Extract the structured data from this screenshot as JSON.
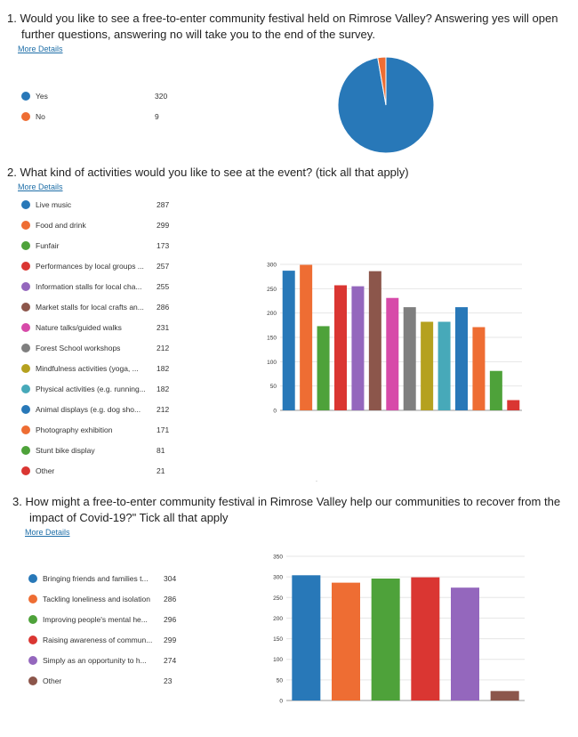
{
  "q1": {
    "title_line1": "1.  Would you like to see a free-to-enter community festival held on Rimrose Valley? Answering yes will open",
    "title_line2": "further questions, answering no will take you to the end of the survey.",
    "more_details": "More Details"
  },
  "q2": {
    "title": "2.  What kind of activities would you like to see at the event? (tick all that apply)",
    "more_details": "More Details"
  },
  "q3": {
    "title_line1": "3.  How might a free-to-enter community festival in Rimrose Valley help our communities to recover from the",
    "title_line2": "impact of Covid-19?\" Tick all that apply",
    "more_details": "More Details"
  },
  "chart_data": [
    {
      "type": "pie",
      "categories": [
        "Yes",
        "No"
      ],
      "values": [
        320,
        9
      ],
      "colors": [
        "#2878b8",
        "#ee6d33"
      ]
    },
    {
      "type": "bar",
      "categories": [
        "Live music",
        "Food and drink",
        "Funfair",
        "Performances by local groups ...",
        "Information stalls for local cha...",
        "Market stalls for local crafts an...",
        "Nature talks/guided walks",
        "Forest School workshops",
        "Mindfulness activities (yoga, ...",
        "Physical activities (e.g. running...",
        "Animal displays (e.g. dog sho...",
        "Photography exhibition",
        "Stunt bike display",
        "Other"
      ],
      "values": [
        287,
        299,
        173,
        257,
        255,
        286,
        231,
        212,
        182,
        182,
        212,
        171,
        81,
        21
      ],
      "colors": [
        "#2878b8",
        "#ee6d33",
        "#4ea23a",
        "#da3632",
        "#9467bd",
        "#8c564b",
        "#d74aa9",
        "#7f7f7f",
        "#b5a11f",
        "#47a9b9",
        "#2878b8",
        "#ee6d33",
        "#4ea23a",
        "#da3632"
      ],
      "yticks": [
        0,
        50,
        100,
        150,
        200,
        250,
        300
      ],
      "ylim": [
        0,
        300
      ]
    },
    {
      "type": "bar",
      "categories": [
        "Bringing friends and families t...",
        "Tackling loneliness and isolation",
        "Improving people's mental he...",
        "Raising awareness of commun...",
        "Simply as an opportunity to h...",
        "Other"
      ],
      "values": [
        304,
        286,
        296,
        299,
        274,
        23
      ],
      "colors": [
        "#2878b8",
        "#ee6d33",
        "#4ea23a",
        "#da3632",
        "#9467bd",
        "#8c564b"
      ],
      "yticks": [
        0,
        50,
        100,
        150,
        200,
        250,
        300,
        350
      ],
      "ylim": [
        0,
        350
      ]
    }
  ]
}
